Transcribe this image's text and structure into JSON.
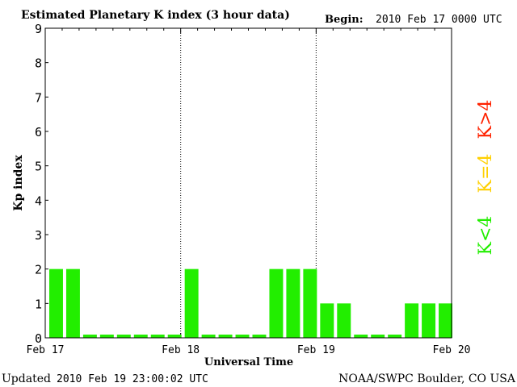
{
  "header": {
    "title": "Estimated Planetary K index (3 hour data)",
    "begin_label": "Begin:",
    "begin_value": "2010 Feb 17 0000 UTC"
  },
  "footer": {
    "updated_label": "Updated",
    "updated_value": "2010 Feb 19 23:00:02 UTC",
    "credit": "NOAA/SWPC Boulder, CO USA"
  },
  "side_legend": [
    {
      "text": "K>4",
      "color": "#ff2200"
    },
    {
      "text": "K=4",
      "color": "#ffd000"
    },
    {
      "text": "K<4",
      "color": "#22ee00"
    }
  ],
  "chart_data": {
    "type": "bar",
    "title": "Estimated Planetary K index (3 hour data)",
    "xlabel": "Universal Time",
    "ylabel": "Kp index",
    "ylim": [
      0,
      9
    ],
    "xlim": [
      0,
      72
    ],
    "x_unit": "hours since 2010 Feb 17 0000 UTC",
    "y_ticks": [
      "0",
      "1",
      "2",
      "3",
      "4",
      "5",
      "6",
      "7",
      "8",
      "9"
    ],
    "x_ticks": [
      {
        "hour": 0,
        "label": "Feb 17"
      },
      {
        "hour": 24,
        "label": "Feb 18"
      },
      {
        "hour": 48,
        "label": "Feb 19"
      },
      {
        "hour": 72,
        "label": "Feb 20"
      }
    ],
    "day_dividers": [
      24,
      48
    ],
    "bar_interval_hours": 3,
    "bar_color": "#22ee00",
    "values": [
      2,
      2,
      0,
      0,
      0,
      0,
      0,
      0,
      2,
      0,
      0,
      0,
      0,
      2,
      2,
      2,
      1,
      1,
      0,
      0,
      0,
      1,
      1,
      1
    ]
  }
}
